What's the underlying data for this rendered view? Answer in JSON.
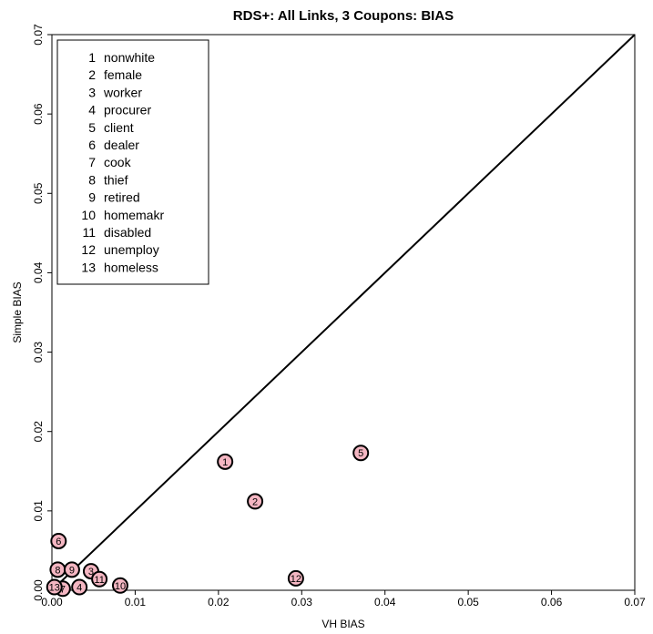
{
  "chart_data": {
    "type": "scatter",
    "title": "RDS+: All Links, 3 Coupons: BIAS",
    "xlabel": "VH BIAS",
    "ylabel": "Simple BIAS",
    "xlim": [
      0,
      0.07
    ],
    "ylim": [
      0,
      0.07
    ],
    "x_ticks": [
      "0.00",
      "0.01",
      "0.02",
      "0.03",
      "0.04",
      "0.05",
      "0.06",
      "0.07"
    ],
    "y_ticks": [
      "0.00",
      "0.01",
      "0.02",
      "0.03",
      "0.04",
      "0.05",
      "0.06",
      "0.07"
    ],
    "reference_line": "y = x",
    "legend_position": "top-left",
    "marker_color": "#f4b6c2",
    "legend": [
      {
        "id": "1",
        "name": "nonwhite"
      },
      {
        "id": "2",
        "name": "female"
      },
      {
        "id": "3",
        "name": "worker"
      },
      {
        "id": "4",
        "name": "procurer"
      },
      {
        "id": "5",
        "name": "client"
      },
      {
        "id": "6",
        "name": "dealer"
      },
      {
        "id": "7",
        "name": "cook"
      },
      {
        "id": "8",
        "name": "thief"
      },
      {
        "id": "9",
        "name": "retired"
      },
      {
        "id": "10",
        "name": "homemakr"
      },
      {
        "id": "11",
        "name": "disabled"
      },
      {
        "id": "12",
        "name": "unemploy"
      },
      {
        "id": "13",
        "name": "homeless"
      }
    ],
    "points": [
      {
        "label": "1",
        "x": 0.0208,
        "y": 0.0162
      },
      {
        "label": "2",
        "x": 0.0244,
        "y": 0.0112
      },
      {
        "label": "3",
        "x": 0.0047,
        "y": 0.0024
      },
      {
        "label": "4",
        "x": 0.0033,
        "y": 0.0004
      },
      {
        "label": "5",
        "x": 0.0371,
        "y": 0.0173
      },
      {
        "label": "6",
        "x": 0.0008,
        "y": 0.0062
      },
      {
        "label": "7",
        "x": 0.0013,
        "y": 0.0002
      },
      {
        "label": "8",
        "x": 0.0007,
        "y": 0.0026
      },
      {
        "label": "9",
        "x": 0.0024,
        "y": 0.0026
      },
      {
        "label": "10",
        "x": 0.0082,
        "y": 0.0006
      },
      {
        "label": "11",
        "x": 0.0057,
        "y": 0.0014
      },
      {
        "label": "12",
        "x": 0.0293,
        "y": 0.0015
      },
      {
        "label": "13",
        "x": 0.0003,
        "y": 0.0004
      }
    ]
  }
}
